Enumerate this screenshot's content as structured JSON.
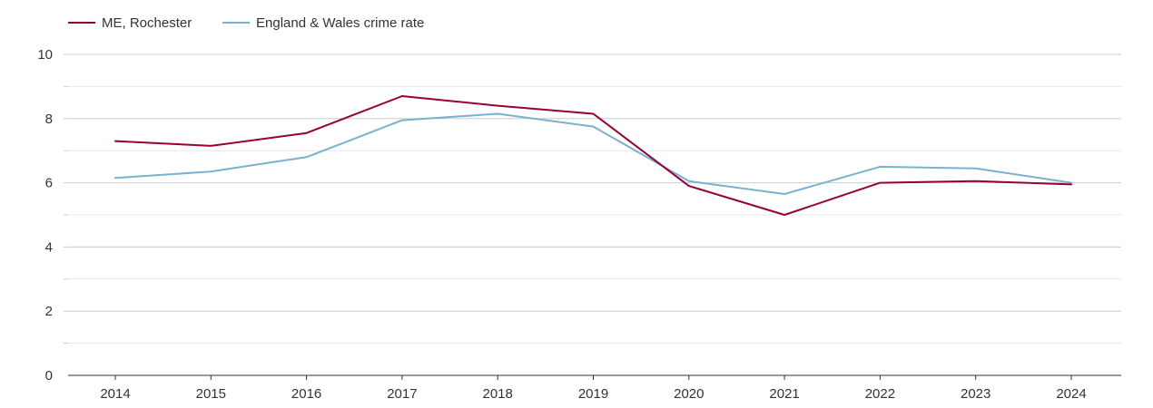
{
  "chart_data": {
    "type": "line",
    "title": "",
    "xlabel": "",
    "ylabel": "",
    "x": [
      "2014",
      "2015",
      "2016",
      "2017",
      "2018",
      "2019",
      "2020",
      "2021",
      "2022",
      "2023",
      "2024"
    ],
    "ylim": [
      0,
      10
    ],
    "y_ticks": [
      "0",
      "2",
      "4",
      "6",
      "8",
      "10"
    ],
    "grid": true,
    "legend_position": "top-left",
    "series": [
      {
        "name": "ME, Rochester",
        "color": "#990033",
        "values": [
          7.3,
          7.15,
          7.55,
          8.7,
          8.4,
          8.15,
          5.9,
          5.0,
          6.0,
          6.05,
          5.95
        ]
      },
      {
        "name": "England & Wales crime rate",
        "color": "#7ab0d0",
        "values": [
          6.15,
          6.35,
          6.8,
          7.95,
          8.15,
          7.75,
          6.05,
          5.65,
          6.5,
          6.45,
          6.0
        ]
      }
    ]
  }
}
